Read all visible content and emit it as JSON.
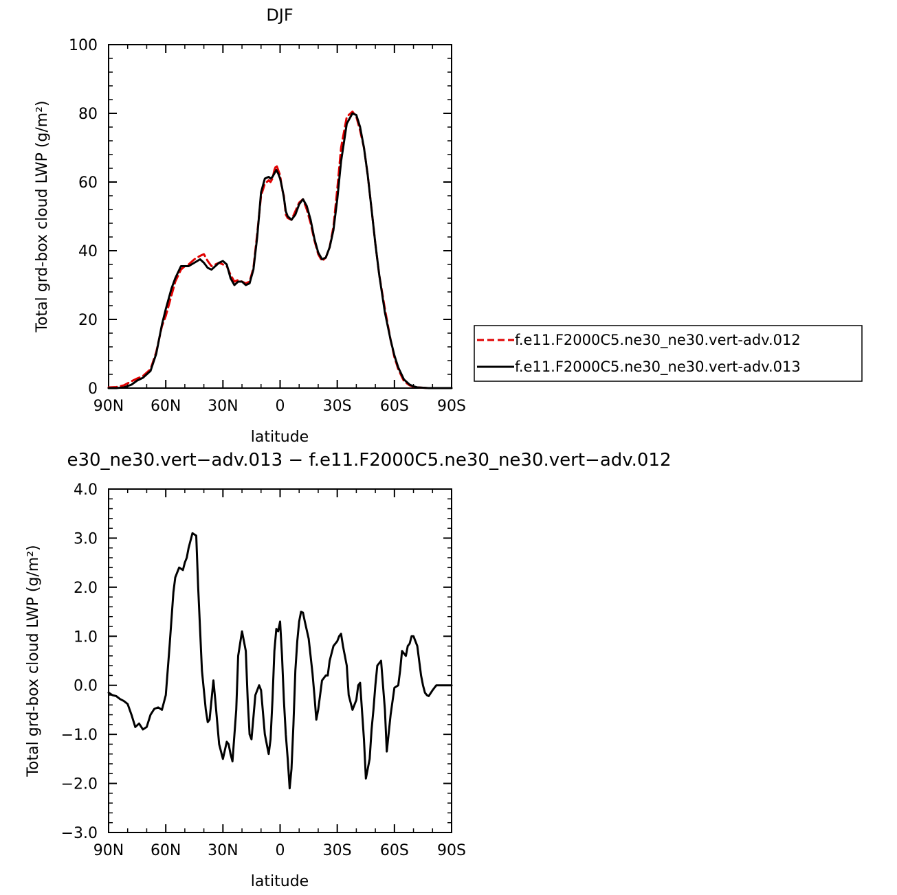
{
  "chart_data": [
    {
      "type": "line",
      "title": "DJF",
      "xlabel": "latitude",
      "ylabel": "Total grd-box cloud LWP (g/m²)",
      "xlim": [
        90,
        -90
      ],
      "ylim": [
        0,
        100
      ],
      "x_ticks": [
        {
          "value": 90,
          "label": "90N"
        },
        {
          "value": 60,
          "label": "60N"
        },
        {
          "value": 30,
          "label": "30N"
        },
        {
          "value": 0,
          "label": "0"
        },
        {
          "value": -30,
          "label": "30S"
        },
        {
          "value": -60,
          "label": "60S"
        },
        {
          "value": -90,
          "label": "90S"
        }
      ],
      "y_ticks": [
        {
          "value": 0,
          "label": "0"
        },
        {
          "value": 20,
          "label": "20"
        },
        {
          "value": 40,
          "label": "40"
        },
        {
          "value": 60,
          "label": "60"
        },
        {
          "value": 80,
          "label": "80"
        },
        {
          "value": 100,
          "label": "100"
        }
      ],
      "legend_position": "right",
      "series": [
        {
          "name": "f.e11.F2000C5.ne30_ne30.vert-adv.012",
          "color": "#e00000",
          "dash": "dashed",
          "x": [
            90,
            86,
            82,
            78,
            75,
            72,
            68,
            65,
            62,
            60,
            57,
            55,
            52,
            50,
            48,
            45,
            42,
            40,
            38,
            36,
            34,
            32,
            30,
            28,
            26,
            24,
            22,
            20,
            18,
            16,
            14,
            12,
            10,
            8,
            6,
            5,
            4,
            3,
            2,
            1,
            0,
            -1,
            -2,
            -3,
            -4,
            -6,
            -8,
            -10,
            -12,
            -14,
            -16,
            -18,
            -20,
            -22,
            -24,
            -26,
            -28,
            -30,
            -32,
            -35,
            -38,
            -40,
            -42,
            -44,
            -46,
            -48,
            -50,
            -52,
            -55,
            -58,
            -60,
            -62,
            -65,
            -68,
            -70,
            -72,
            -75,
            -78,
            -80,
            -84,
            -87,
            -90
          ],
          "y": [
            0.2,
            0.3,
            0.8,
            2.0,
            2.8,
            3.5,
            5.5,
            10.5,
            18.0,
            21.0,
            27.0,
            31.0,
            34.5,
            35.5,
            36.0,
            37.5,
            38.5,
            39.0,
            37.0,
            35.5,
            36.0,
            36.5,
            36.0,
            35.5,
            33.0,
            31.0,
            31.5,
            31.0,
            30.5,
            31.0,
            35.0,
            45.0,
            56.0,
            59.5,
            60.5,
            60.0,
            61.0,
            63.5,
            65.0,
            63.5,
            62.0,
            58.0,
            56.0,
            50.5,
            49.5,
            49.0,
            51.5,
            54.0,
            55.0,
            52.0,
            48.0,
            43.0,
            39.0,
            37.0,
            38.0,
            41.0,
            47.0,
            58.0,
            70.0,
            79.0,
            80.5,
            79.0,
            75.0,
            70.0,
            62.0,
            52.0,
            42.0,
            33.0,
            23.0,
            14.0,
            9.0,
            5.5,
            2.0,
            0.8,
            0.4,
            0.2,
            0.1,
            0.0,
            0.0,
            0.0,
            0.0,
            0.0
          ]
        },
        {
          "name": "f.e11.F2000C5.ne30_ne30.vert-adv.013",
          "color": "#000000",
          "dash": "solid",
          "x": [
            90,
            86,
            82,
            78,
            75,
            72,
            68,
            65,
            62,
            60,
            57,
            55,
            52,
            50,
            48,
            45,
            42,
            40,
            38,
            36,
            34,
            32,
            30,
            28,
            26,
            24,
            22,
            20,
            18,
            16,
            14,
            12,
            10,
            8,
            6,
            5,
            4,
            3,
            2,
            1,
            0,
            -1,
            -2,
            -3,
            -4,
            -6,
            -8,
            -10,
            -12,
            -14,
            -16,
            -18,
            -20,
            -22,
            -24,
            -26,
            -28,
            -30,
            -32,
            -35,
            -38,
            -40,
            -42,
            -44,
            -46,
            -48,
            -50,
            -52,
            -55,
            -58,
            -60,
            -62,
            -65,
            -68,
            -70,
            -72,
            -75,
            -78,
            -80,
            -84,
            -87,
            -90
          ],
          "y": [
            0.0,
            0.0,
            0.2,
            1.0,
            2.2,
            3.0,
            5.0,
            10.0,
            18.5,
            23.0,
            29.0,
            32.0,
            35.5,
            35.5,
            35.5,
            36.5,
            37.5,
            36.5,
            35.0,
            34.5,
            35.5,
            36.5,
            37.0,
            36.0,
            32.0,
            30.0,
            31.0,
            31.0,
            30.0,
            30.5,
            34.5,
            44.0,
            57.0,
            61.0,
            61.5,
            61.0,
            61.5,
            62.5,
            63.5,
            62.5,
            61.0,
            58.5,
            55.5,
            51.5,
            50.0,
            49.0,
            50.5,
            53.5,
            55.0,
            53.0,
            49.0,
            43.5,
            39.5,
            37.5,
            38.0,
            41.0,
            46.0,
            55.0,
            66.0,
            77.0,
            80.0,
            79.5,
            76.0,
            70.0,
            62.0,
            52.0,
            42.0,
            33.0,
            22.0,
            14.0,
            9.5,
            6.0,
            2.5,
            1.0,
            0.5,
            0.2,
            0.1,
            0.0,
            0.0,
            0.0,
            0.0,
            0.0
          ]
        }
      ]
    },
    {
      "type": "line",
      "title": "e30_ne30.vert−adv.013 − f.e11.F2000C5.ne30_ne30.vert−adv.012",
      "xlabel": "latitude",
      "ylabel": "Total grd-box cloud LWP (g/m²)",
      "xlim": [
        90,
        -90
      ],
      "ylim": [
        -3,
        4
      ],
      "x_ticks": [
        {
          "value": 90,
          "label": "90N"
        },
        {
          "value": 60,
          "label": "60N"
        },
        {
          "value": 30,
          "label": "30N"
        },
        {
          "value": 0,
          "label": "0"
        },
        {
          "value": -30,
          "label": "30S"
        },
        {
          "value": -60,
          "label": "60S"
        },
        {
          "value": -90,
          "label": "90S"
        }
      ],
      "y_ticks": [
        {
          "value": -3,
          "label": "−3.0"
        },
        {
          "value": -2,
          "label": "−2.0"
        },
        {
          "value": -1,
          "label": "−1.0"
        },
        {
          "value": 0,
          "label": "0.0"
        },
        {
          "value": 1,
          "label": "1.0"
        },
        {
          "value": 2,
          "label": "2.0"
        },
        {
          "value": 3,
          "label": "3.0"
        },
        {
          "value": 4,
          "label": "4.0"
        }
      ],
      "series": [
        {
          "name": "",
          "color": "#000000",
          "dash": "solid",
          "x": [
            90,
            88,
            86,
            84,
            82,
            80,
            78,
            76,
            74,
            72,
            70,
            68,
            66,
            64,
            62,
            60,
            58,
            56,
            55,
            53,
            51,
            50,
            49,
            48,
            46,
            44,
            43,
            41,
            39,
            38,
            37,
            35,
            34,
            32,
            30,
            28,
            27,
            26,
            25,
            23,
            22,
            20,
            18,
            17,
            16,
            15,
            13,
            11,
            10,
            8,
            6,
            5,
            4,
            3,
            2,
            1,
            0,
            -1,
            -2,
            -3,
            -4,
            -5,
            -6,
            -7,
            -8,
            -9,
            -10,
            -11,
            -12,
            -13,
            -15,
            -17,
            -18,
            -19,
            -20,
            -22,
            -24,
            -25,
            -26,
            -28,
            -30,
            -31,
            -32,
            -33,
            -35,
            -36,
            -38,
            -40,
            -41,
            -42,
            -44,
            -45,
            -47,
            -48,
            -49,
            -50,
            -51,
            -53,
            -55,
            -56,
            -58,
            -60,
            -62,
            -63,
            -64,
            -66,
            -67,
            -68,
            -69,
            -70,
            -72,
            -74,
            -75,
            -76,
            -77,
            -78,
            -80,
            -82,
            -84,
            -86,
            -88,
            -90
          ],
          "y": [
            -0.15,
            -0.2,
            -0.22,
            -0.28,
            -0.32,
            -0.38,
            -0.6,
            -0.85,
            -0.78,
            -0.9,
            -0.85,
            -0.6,
            -0.48,
            -0.45,
            -0.5,
            -0.2,
            0.8,
            1.9,
            2.2,
            2.4,
            2.35,
            2.5,
            2.6,
            2.8,
            3.1,
            3.05,
            2.0,
            0.3,
            -0.5,
            -0.75,
            -0.7,
            0.1,
            -0.3,
            -1.2,
            -1.5,
            -1.15,
            -1.2,
            -1.4,
            -1.55,
            -0.5,
            0.6,
            1.1,
            0.7,
            -0.3,
            -1.0,
            -1.1,
            -0.2,
            0.0,
            -0.1,
            -1.0,
            -1.4,
            -1.1,
            -0.3,
            0.7,
            1.15,
            1.1,
            1.3,
            0.6,
            -0.3,
            -1.0,
            -1.5,
            -2.1,
            -1.7,
            -0.8,
            0.3,
            0.9,
            1.3,
            1.5,
            1.48,
            1.3,
            0.95,
            0.25,
            -0.2,
            -0.7,
            -0.5,
            0.1,
            0.2,
            0.2,
            0.5,
            0.8,
            0.9,
            1.0,
            1.05,
            0.8,
            0.4,
            -0.2,
            -0.5,
            -0.3,
            0.0,
            0.05,
            -1.1,
            -1.9,
            -1.5,
            -0.9,
            -0.5,
            0.0,
            0.4,
            0.5,
            -0.5,
            -1.35,
            -0.6,
            -0.05,
            0.0,
            0.3,
            0.7,
            0.6,
            0.8,
            0.85,
            1.0,
            1.0,
            0.8,
            0.2,
            0.0,
            -0.15,
            -0.2,
            -0.22,
            -0.1,
            0.0,
            0.0,
            0.0,
            0.0,
            0.0
          ]
        }
      ]
    }
  ]
}
